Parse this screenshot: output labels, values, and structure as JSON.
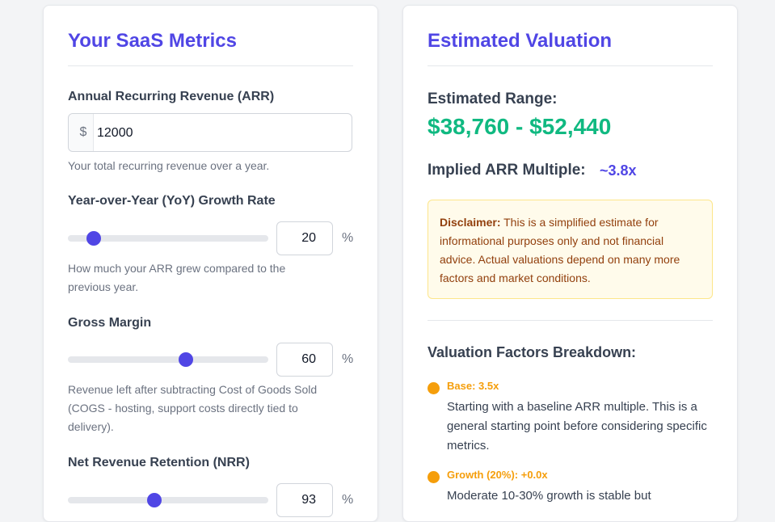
{
  "metrics": {
    "title": "Your SaaS Metrics",
    "arr": {
      "label": "Annual Recurring Revenue (ARR)",
      "prefix": "$",
      "value": "12000",
      "help": "Your total recurring revenue over a year."
    },
    "growth": {
      "label": "Year-over-Year (YoY) Growth Rate",
      "value": "20",
      "slider_fraction": 0.13,
      "unit": "%",
      "help": "How much your ARR grew compared to the previous year."
    },
    "gross_margin": {
      "label": "Gross Margin",
      "value": "60",
      "slider_fraction": 0.59,
      "unit": "%",
      "help": "Revenue left after subtracting Cost of Goods Sold (COGS - hosting, support costs directly tied to delivery)."
    },
    "nrr": {
      "label": "Net Revenue Retention (NRR)",
      "value": "93",
      "slider_fraction": 0.43,
      "unit": "%"
    }
  },
  "valuation": {
    "title": "Estimated Valuation",
    "range_label": "Estimated Range:",
    "range_value": "$38,760 - $52,440",
    "multiple_label": "Implied ARR Multiple:",
    "multiple_value": "~3.8x",
    "disclaimer": {
      "bold": "Disclaimer:",
      "text": " This is a simplified estimate for informational purposes only and not financial advice. Actual valuations depend on many more factors and market conditions."
    },
    "breakdown_title": "Valuation Factors Breakdown:",
    "factors": [
      {
        "name": "Base: 3.5x",
        "description": "Starting with a baseline ARR multiple. This is a general starting point before considering specific metrics."
      },
      {
        "name": "Growth (20%): +0.0x",
        "description": "Moderate 10-30% growth is stable but"
      }
    ]
  },
  "colors": {
    "accent": "#5046e5",
    "positive": "#10b981",
    "warning_dot": "#f59e0b"
  }
}
